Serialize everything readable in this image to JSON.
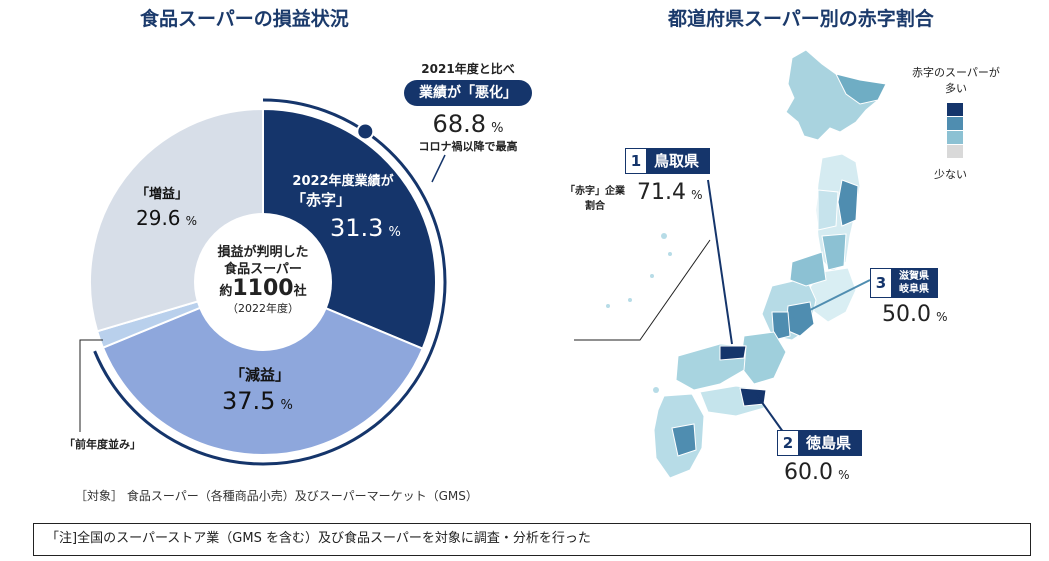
{
  "left_title": "食品スーパーの損益状況",
  "right_title": "都道府県スーパー別の赤字割合",
  "chart_data": [
    {
      "type": "pie",
      "title": "食品スーパーの損益状況",
      "center": {
        "line1": "損益が判明した",
        "line2": "食品スーパー",
        "prefix": "約",
        "count": "1100",
        "unit": "社",
        "year": "（2022年度）"
      },
      "slices": [
        {
          "label": "2022年度業績が",
          "label2": "「赤字」",
          "value": 31.3,
          "value_text": "31.3",
          "unit": "%",
          "color": "#15356b"
        },
        {
          "label": "「減益」",
          "value": 37.5,
          "value_text": "37.5",
          "unit": "%",
          "color": "#8ea7dc"
        },
        {
          "label": "「前年度並み」",
          "value": 1.6,
          "color": "#b9d0ec"
        },
        {
          "label": "「増益」",
          "value": 29.6,
          "value_text": "29.6",
          "unit": "%",
          "color": "#d7dee8"
        }
      ],
      "arc_annotation": {
        "line1": "2021年度と比べ",
        "badge": "業績が「悪化」",
        "value": "68.8",
        "unit": "%",
        "line3": "コロナ禍以降で最高"
      }
    },
    {
      "type": "map",
      "title": "都道府県スーパー別の赤字割合",
      "legend": {
        "top": "赤字のスーパーが",
        "top2": "多い",
        "bottom": "少ない",
        "colors": [
          "#15356b",
          "#4f8db0",
          "#8cc1d3",
          "#d9d9d9"
        ]
      },
      "callouts": [
        {
          "rank": "1",
          "name": "鳥取県",
          "label": "「赤字」企業",
          "label2": "割合",
          "value": "71.4",
          "unit": "%"
        },
        {
          "rank": "2",
          "name": "徳島県",
          "value": "60.0",
          "unit": "%"
        },
        {
          "rank": "3",
          "name": "滋賀県",
          "name2": "岐阜県",
          "value": "50.0",
          "unit": "%"
        }
      ]
    }
  ],
  "target_text": "［対象］ 食品スーパー（各種商品小売）及びスーパーマーケット（GMS）",
  "note_text": "「注]全国のスーパーストア業（GMS を含む）及び食品スーパーを対象に調査・分析を行った"
}
